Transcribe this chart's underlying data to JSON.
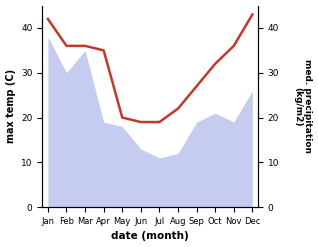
{
  "months": [
    "Jan",
    "Feb",
    "Mar",
    "Apr",
    "May",
    "Jun",
    "Jul",
    "Aug",
    "Sep",
    "Oct",
    "Nov",
    "Dec"
  ],
  "temperature": [
    42,
    36,
    36,
    35,
    20,
    19,
    19,
    22,
    27,
    32,
    36,
    43
  ],
  "precipitation": [
    38,
    30,
    35,
    19,
    18,
    13,
    11,
    12,
    19,
    21,
    19,
    26
  ],
  "temp_color": "#c0392b",
  "precip_color": "#b3bcec",
  "ylabel_left": "max temp (C)",
  "ylabel_right": "med. precipitation\n(kg/m2)",
  "xlabel": "date (month)",
  "ylim_left": [
    0,
    45
  ],
  "ylim_right": [
    0,
    45
  ],
  "yticks_left": [
    0,
    10,
    20,
    30,
    40
  ],
  "yticks_right": [
    0,
    10,
    20,
    30,
    40
  ],
  "background_color": "#ffffff",
  "line_width": 1.8
}
